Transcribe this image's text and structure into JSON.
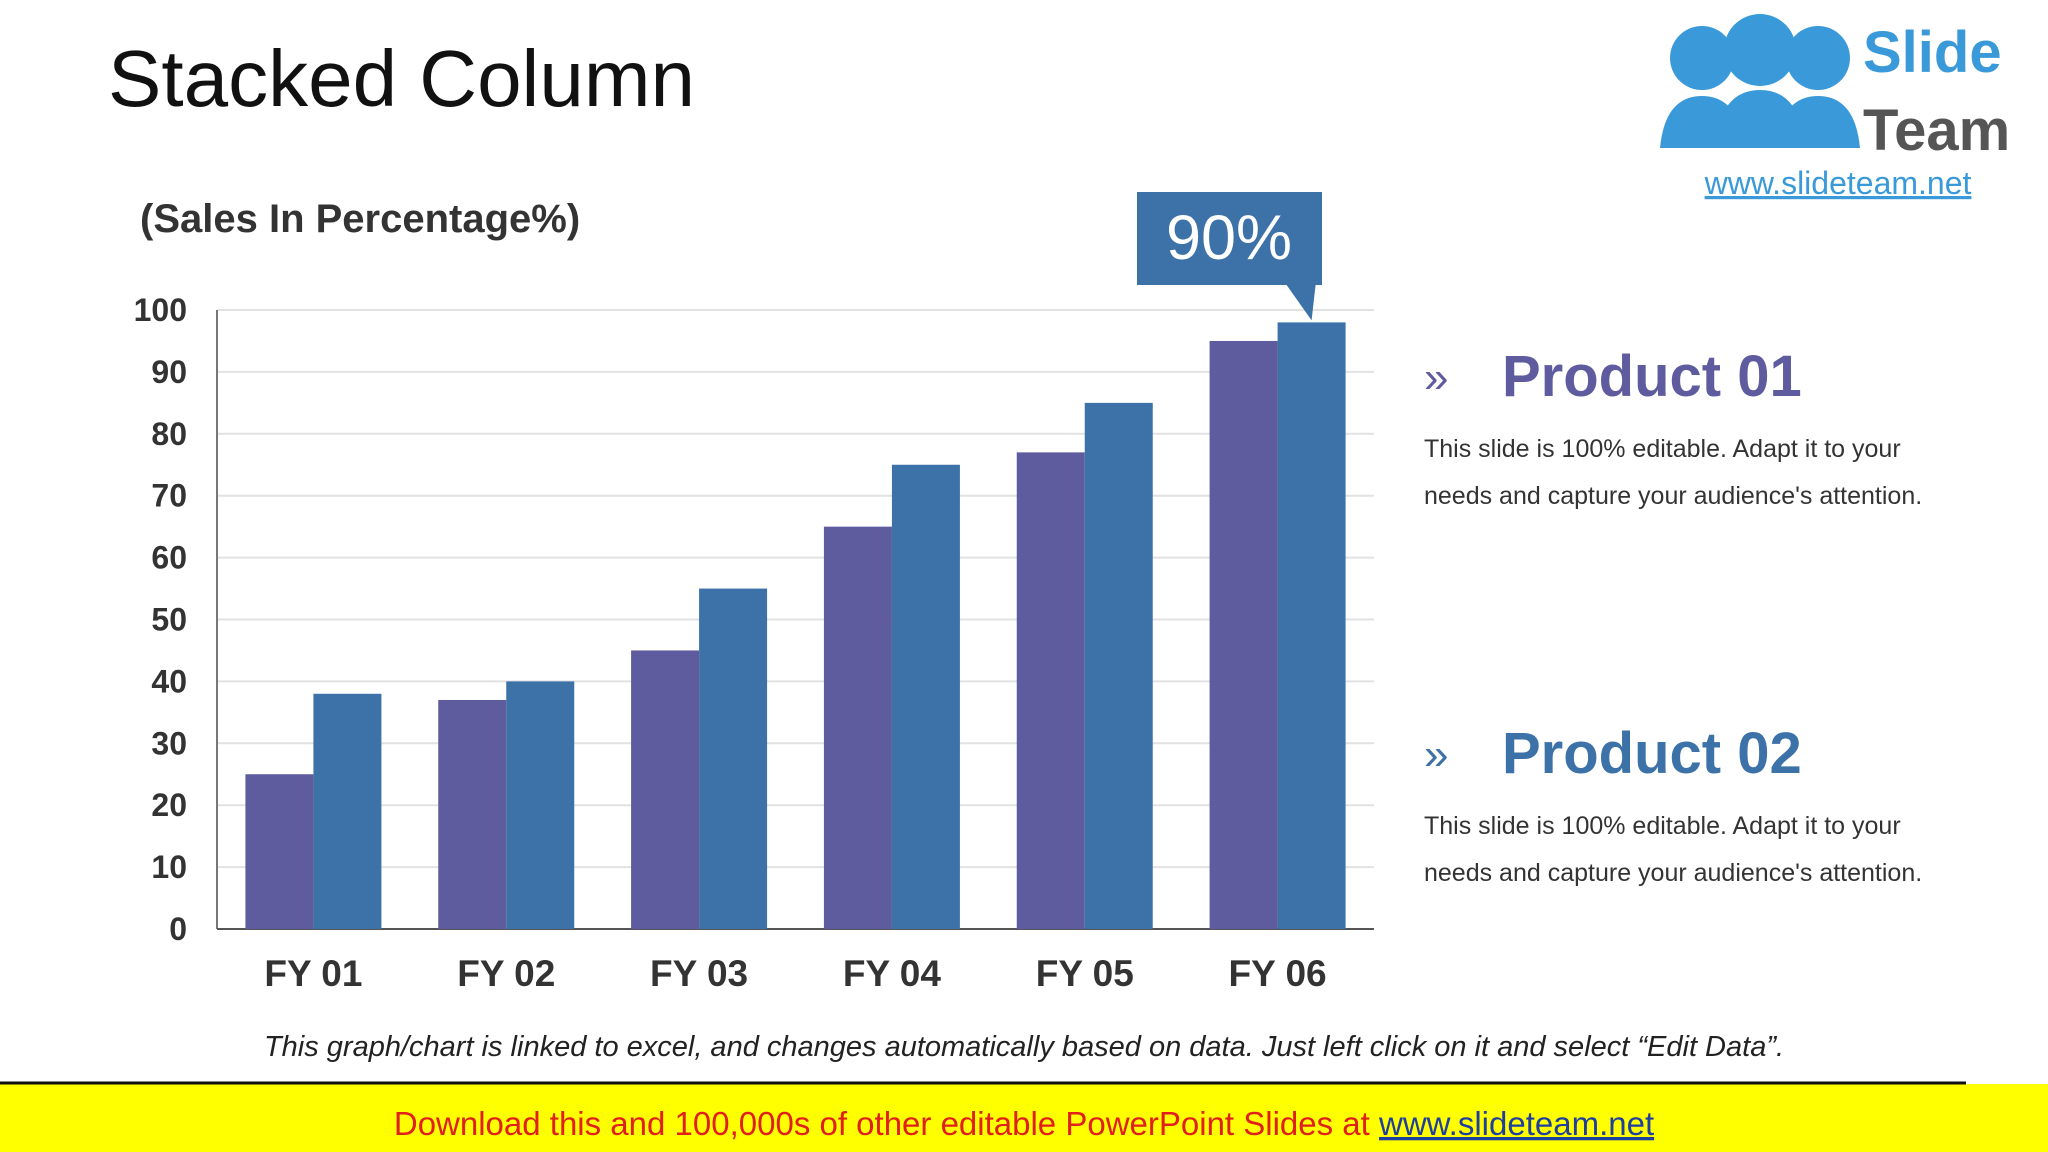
{
  "slide": {
    "title": "Stacked Column",
    "footnote": "This graph/chart is linked to excel, and changes automatically based on data. Just left click on it and select “Edit Data”.",
    "products": [
      {
        "marker": "»",
        "description": [
          "This slide is 100% editable. Adapt it to your",
          "needs and capture your audience's attention."
        ]
      },
      {
        "marker": "»",
        "description": [
          "This slide is 100% editable. Adapt it to your",
          "needs and capture your audience's attention."
        ]
      }
    ],
    "banner": {
      "text": "Download this and 100,000s of other editable PowerPoint Slides at ",
      "link": "www.slideteam.net"
    },
    "logo": {
      "line1": "Slide",
      "line2": "Team",
      "url": "www.slideteam.net"
    }
  },
  "chart_data": {
    "type": "bar",
    "y_label": "(Sales In Percentage%)",
    "annotation": "90%",
    "categories": [
      "FY 01",
      "FY 02",
      "FY 03",
      "FY 04",
      "FY 05",
      "FY 06"
    ],
    "series": [
      {
        "name": "Product 01",
        "color": "#5f5b9f",
        "values": [
          25,
          37,
          45,
          65,
          77,
          95
        ]
      },
      {
        "name": "Product 02",
        "color": "#3d72a8",
        "values": [
          38,
          40,
          55,
          75,
          85,
          98
        ]
      }
    ],
    "ylim": [
      0,
      100
    ],
    "yticks": [
      0,
      10,
      20,
      30,
      40,
      50,
      60,
      70,
      80,
      90,
      100
    ],
    "grid": true
  }
}
